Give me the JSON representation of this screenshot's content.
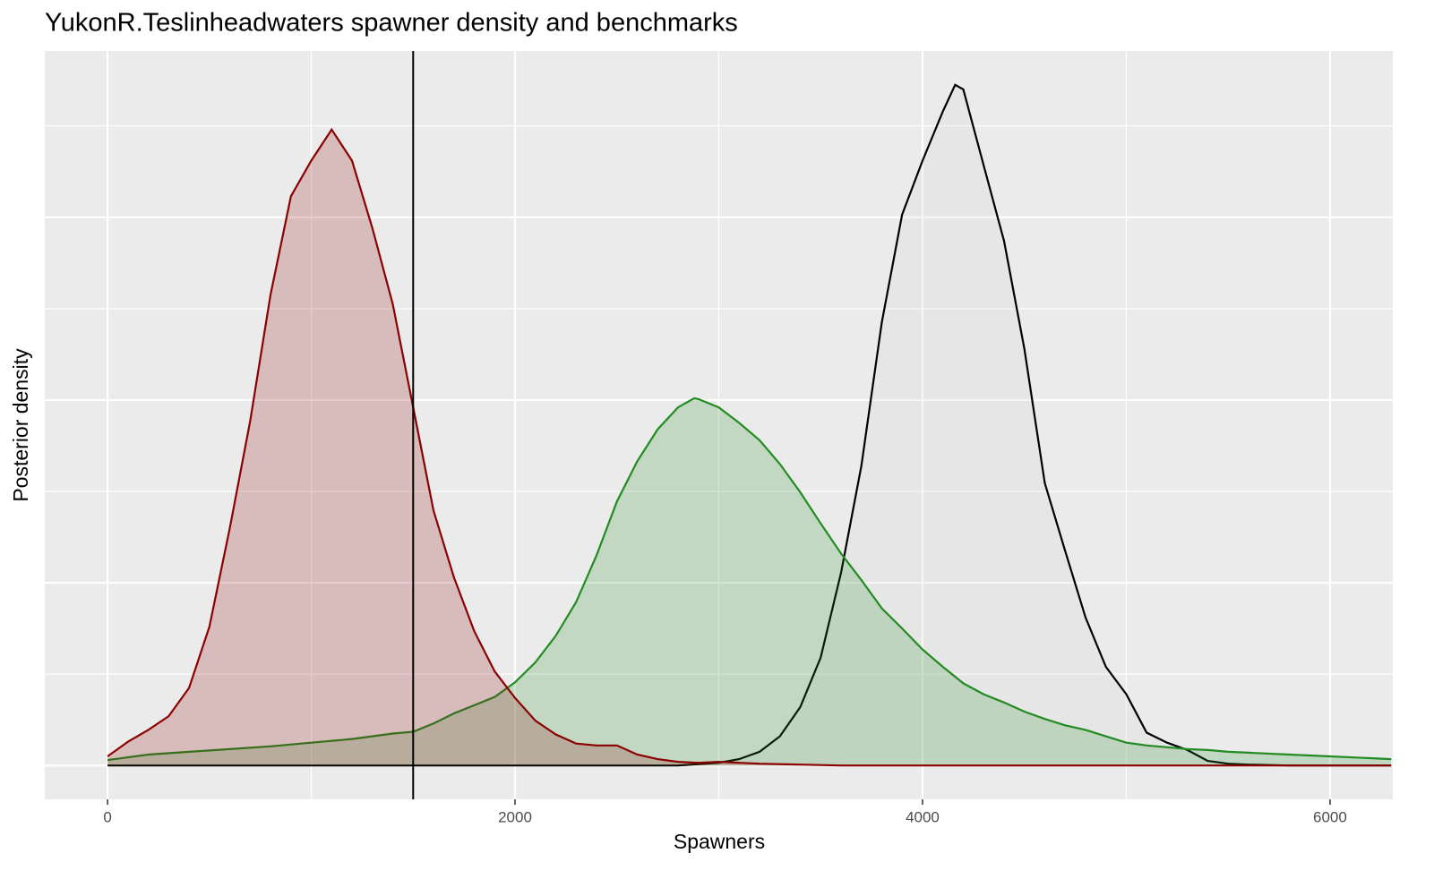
{
  "chart_data": {
    "type": "density",
    "title": "YukonR.Teslinheadwaters spawner density and benchmarks",
    "x_label": "Spawners",
    "y_label": "Posterior density",
    "xlim": [
      -308,
      6308
    ],
    "ylim": [
      -0.37,
      7.82
    ],
    "xticks": [
      0,
      2000,
      4000,
      6000
    ],
    "yticks": [
      0,
      1,
      2,
      3,
      4,
      5,
      6,
      7
    ],
    "grid": true,
    "fill_opacity": 0.2,
    "benchmark": 1500,
    "series": [
      {
        "color": "#000000",
        "fill": "#d3d3d3",
        "x": [
          0,
          2800,
          3000,
          3100,
          3200,
          3300,
          3400,
          3500,
          3600,
          3700,
          3800,
          3900,
          4000,
          4100,
          4160,
          4200,
          4300,
          4400,
          4500,
          4600,
          4700,
          4800,
          4900,
          5000,
          5100,
          5200,
          5300,
          5400,
          5500,
          5600,
          5800,
          6300
        ],
        "values": [
          0,
          0,
          0.03,
          0.07,
          0.15,
          0.32,
          0.64,
          1.18,
          2.11,
          3.28,
          4.85,
          6.03,
          6.62,
          7.16,
          7.45,
          7.4,
          6.57,
          5.74,
          4.56,
          3.09,
          2.35,
          1.62,
          1.08,
          0.78,
          0.36,
          0.25,
          0.17,
          0.05,
          0.02,
          0.01,
          0,
          0
        ]
      },
      {
        "color": "#228b22",
        "fill": "#228b22",
        "x": [
          0,
          200,
          400,
          600,
          800,
          1000,
          1200,
          1400,
          1500,
          1600,
          1700,
          1800,
          1900,
          2000,
          2100,
          2200,
          2300,
          2400,
          2500,
          2600,
          2700,
          2800,
          2880,
          2900,
          3000,
          3100,
          3200,
          3300,
          3400,
          3500,
          3600,
          3700,
          3800,
          3900,
          4000,
          4100,
          4200,
          4300,
          4400,
          4500,
          4600,
          4700,
          4800,
          4900,
          5000,
          5100,
          5200,
          5300,
          5400,
          5500,
          5600,
          5800,
          6000,
          6300
        ],
        "values": [
          0.06,
          0.12,
          0.15,
          0.18,
          0.21,
          0.25,
          0.29,
          0.35,
          0.37,
          0.46,
          0.57,
          0.66,
          0.75,
          0.91,
          1.13,
          1.42,
          1.79,
          2.3,
          2.89,
          3.33,
          3.68,
          3.92,
          4.02,
          4.01,
          3.92,
          3.75,
          3.56,
          3.3,
          2.99,
          2.65,
          2.32,
          2.03,
          1.72,
          1.5,
          1.27,
          1.08,
          0.9,
          0.78,
          0.69,
          0.59,
          0.51,
          0.44,
          0.39,
          0.32,
          0.25,
          0.22,
          0.2,
          0.18,
          0.17,
          0.15,
          0.14,
          0.12,
          0.1,
          0.07
        ]
      },
      {
        "color": "#8b0000",
        "fill": "#8b0000",
        "x": [
          0,
          100,
          200,
          300,
          400,
          500,
          600,
          700,
          800,
          900,
          1000,
          1100,
          1200,
          1300,
          1400,
          1500,
          1600,
          1700,
          1800,
          1900,
          2000,
          2100,
          2200,
          2300,
          2400,
          2500,
          2600,
          2700,
          2800,
          2900,
          3000,
          3200,
          3400,
          3600,
          6300
        ],
        "values": [
          0.1,
          0.26,
          0.39,
          0.54,
          0.85,
          1.52,
          2.6,
          3.77,
          5.15,
          6.23,
          6.62,
          6.96,
          6.62,
          5.88,
          5.05,
          3.92,
          2.79,
          2.06,
          1.47,
          1.03,
          0.74,
          0.49,
          0.34,
          0.24,
          0.22,
          0.22,
          0.12,
          0.07,
          0.04,
          0.03,
          0.04,
          0.02,
          0.01,
          0,
          0
        ]
      }
    ]
  }
}
